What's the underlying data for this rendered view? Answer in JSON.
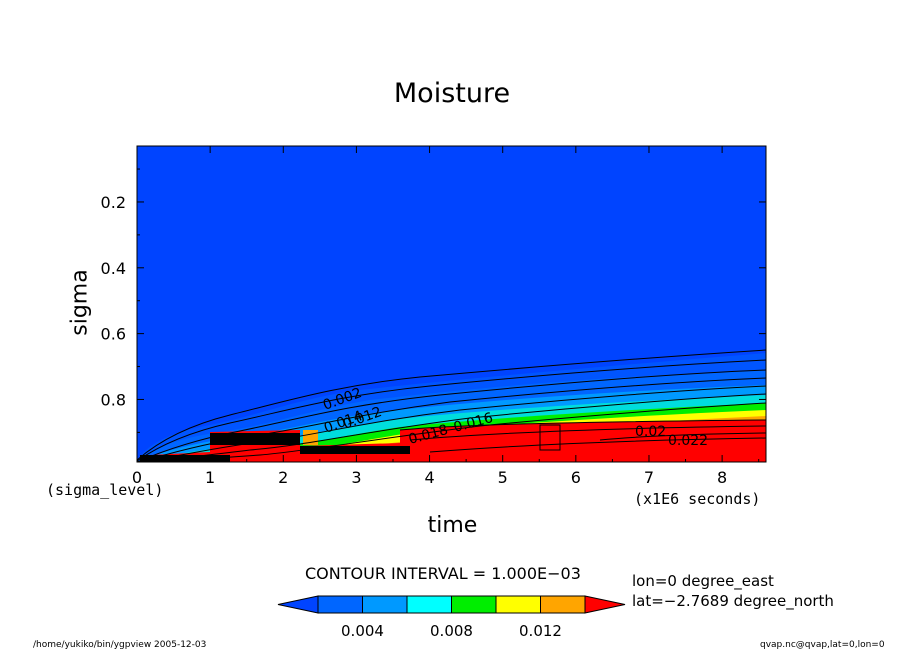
{
  "chart_data": {
    "type": "heatmap",
    "title": "Moisture",
    "xlabel": "time",
    "ylabel": "sigma",
    "x_unit_left": "(sigma_level)",
    "x_unit_right": "(x1E6 seconds)",
    "x_ticks": [
      "0",
      "1",
      "2",
      "3",
      "4",
      "5",
      "6",
      "7",
      "8"
    ],
    "y_ticks": [
      "0.2",
      "0.4",
      "0.6",
      "0.8"
    ],
    "xlim": [
      0,
      8.6
    ],
    "ylim": [
      0.03,
      0.99
    ],
    "contour_interval_text": "CONTOUR INTERVAL = 1.000E−03",
    "contour_labels": [
      "0.002",
      "0.014",
      "0.012",
      "0.018",
      "0.016",
      "0.02",
      "0.022"
    ],
    "colorbar": {
      "colors": [
        "#0044ff",
        "#0066ff",
        "#0099ff",
        "#00ffff",
        "#00ee00",
        "#ffff00",
        "#ffa500",
        "#ff0000"
      ],
      "tick_labels": [
        "0.004",
        "0.008",
        "0.012"
      ]
    },
    "info_lines": [
      "lon=0 degree_east",
      "lat=−2.7689 degree_north"
    ],
    "footer_left": "/home/yukiko/bin/ygpview  2005-12-03",
    "footer_right": "qvap.nc@qvap,lat=0,lon=0"
  }
}
